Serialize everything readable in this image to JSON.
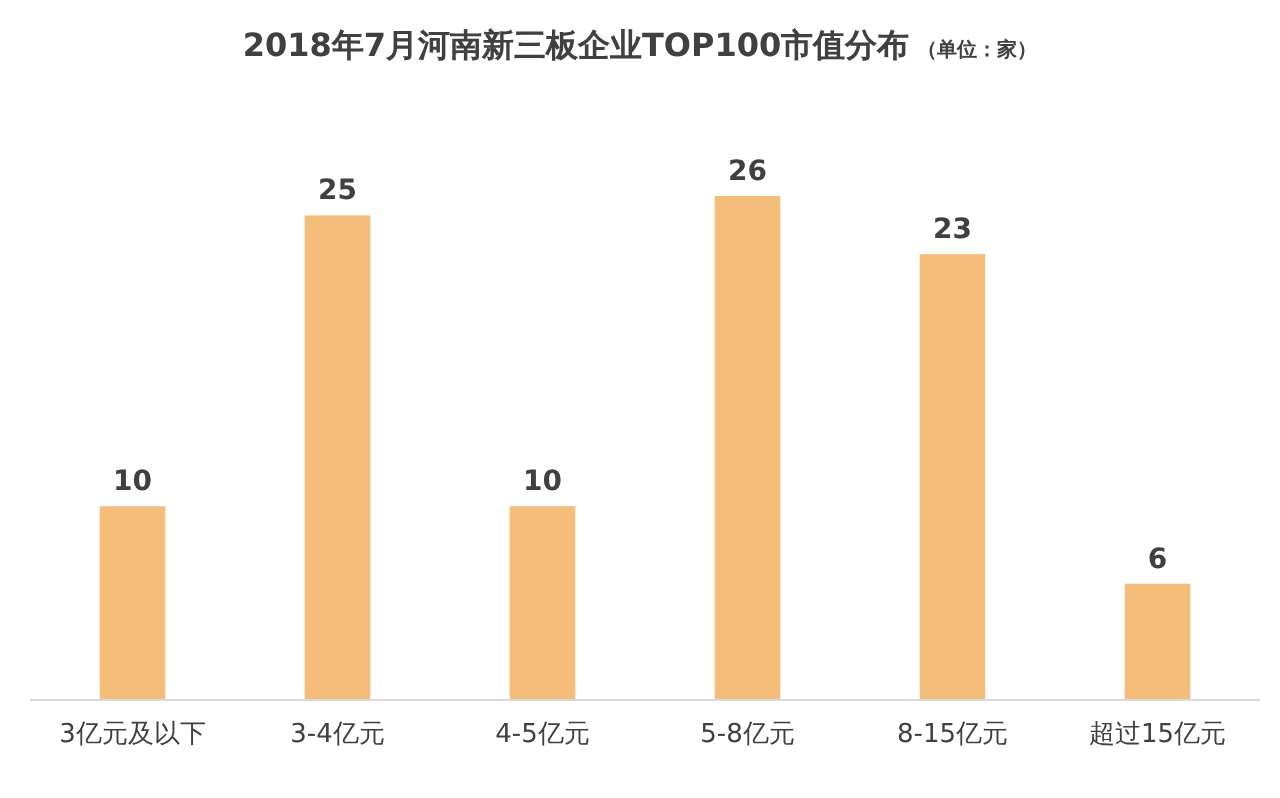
{
  "chart_data": {
    "type": "bar",
    "title": "2018年7月河南新三板企业TOP100市值分布",
    "subtitle": "（单位：家）",
    "categories": [
      "3亿元及以下",
      "3-4亿元",
      "4-5亿元",
      "5-8亿元",
      "8-15亿元",
      "超过15亿元"
    ],
    "values": [
      10,
      25,
      10,
      26,
      23,
      6
    ],
    "color": "#f4be7a",
    "data_labels": true
  }
}
